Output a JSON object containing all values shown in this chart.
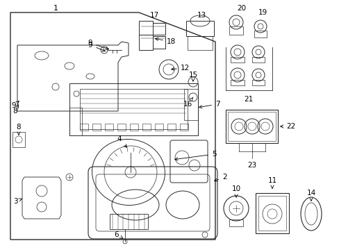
{
  "bg_color": "#ffffff",
  "lc": "#2a2a2a",
  "lw": 0.8,
  "figsize": [
    4.89,
    3.6
  ],
  "dpi": 100
}
